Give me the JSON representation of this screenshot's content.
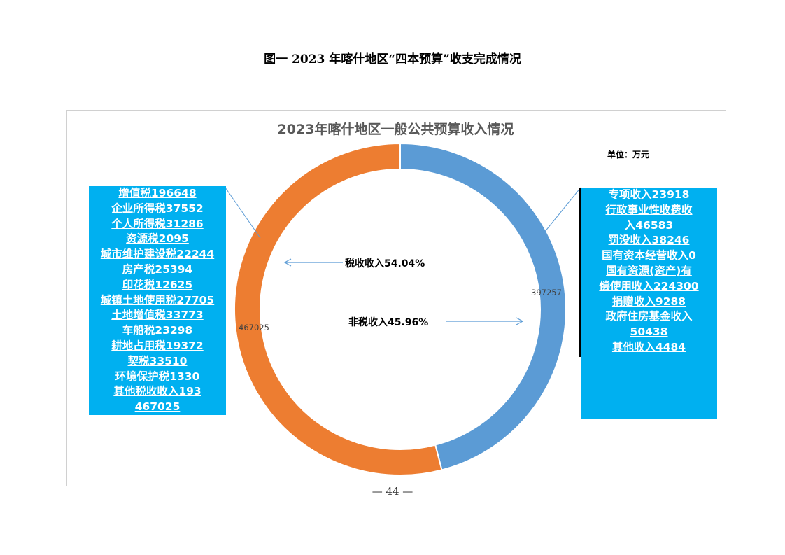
{
  "doc_title": "图一  2023 年喀什地区“四本预算”收支完成情况",
  "page_number": "— 44 —",
  "chart": {
    "title": "2023年喀什地区一般公共预算收入情况",
    "unit": "单位：万元",
    "ring_labels": {
      "tax": "467025",
      "nontax": "397257"
    },
    "center_labels": {
      "tax": "税收收入54.04%",
      "nontax": "非税收入45.96%"
    }
  },
  "tax_items": [
    "增值税196648",
    "企业所得税37552",
    "个人所得税31286",
    "资源税2095",
    "城市维护建设税22244",
    "房产税25394",
    "印花税12625",
    "城镇土地使用税27705",
    "土地增值税33773",
    "车船税23298",
    "耕地占用税19372",
    "契税33510",
    "环境保护税1330",
    "其他税收收入193",
    "467025"
  ],
  "nontax_items": [
    "专项收入23918",
    "行政事业性收费收",
    "入46583",
    "罚没收入38246",
    "国有资本经营收入0",
    "国有资源(资产)有",
    "偿使用收入224300",
    "捐赠收入9288",
    "政府住房基金收入",
    "50438",
    "其他收入4484"
  ],
  "chart_data": {
    "type": "pie",
    "title": "2023年喀什地区一般公共预算收入情况",
    "unit": "万元",
    "categories": [
      "税收收入",
      "非税收入"
    ],
    "values": [
      467025,
      397257
    ],
    "percent_labels": [
      "54.04%",
      "45.96%"
    ],
    "colors": [
      "#ed7d31",
      "#5b9bd5"
    ],
    "donut": true
  }
}
